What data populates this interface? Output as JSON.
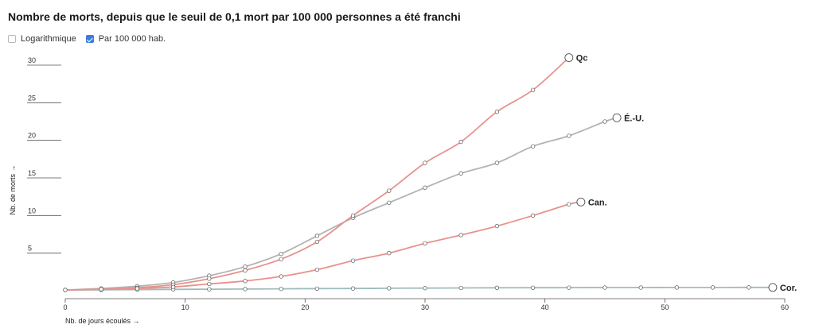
{
  "title": "Nombre de morts, depuis que le seuil de 0,1 mort par 100 000 personnes a été franchi",
  "controls": [
    {
      "label": "Logarithmique",
      "checked": false
    },
    {
      "label": "Par 100 000 hab.",
      "checked": true
    }
  ],
  "chart_data": {
    "type": "line",
    "xlabel": "Nb. de jours écoulés →",
    "ylabel": "Nb. de morts →",
    "xlim": [
      0,
      60
    ],
    "ylim": [
      0,
      30
    ],
    "x_ticks": [
      0,
      10,
      20,
      30,
      40,
      50,
      60
    ],
    "y_ticks": [
      5,
      10,
      15,
      20,
      25,
      30
    ],
    "log_scale": false,
    "grid": false,
    "series": [
      {
        "name": "Qc",
        "color": "#e8928c",
        "x": [
          0,
          3,
          6,
          9,
          12,
          15,
          18,
          21,
          24,
          27,
          30,
          33,
          36,
          39,
          42
        ],
        "y": [
          0.1,
          0.2,
          0.4,
          0.8,
          1.6,
          2.7,
          4.2,
          6.5,
          10.0,
          13.3,
          17.0,
          19.8,
          23.8,
          26.7,
          31.0
        ]
      },
      {
        "name": "É.-U.",
        "color": "#b3b3b3",
        "x": [
          0,
          3,
          6,
          9,
          12,
          15,
          18,
          21,
          24,
          27,
          30,
          33,
          36,
          39,
          42,
          45,
          46
        ],
        "y": [
          0.1,
          0.3,
          0.6,
          1.1,
          2.0,
          3.2,
          4.9,
          7.3,
          9.7,
          11.7,
          13.7,
          15.6,
          17.0,
          19.2,
          20.6,
          22.5,
          23.0
        ]
      },
      {
        "name": "Can.",
        "color": "#e8928c",
        "x": [
          0,
          3,
          6,
          9,
          12,
          15,
          18,
          21,
          24,
          27,
          30,
          33,
          36,
          39,
          42,
          43
        ],
        "y": [
          0.1,
          0.2,
          0.3,
          0.5,
          0.9,
          1.3,
          1.9,
          2.8,
          4.0,
          5.0,
          6.3,
          7.4,
          8.6,
          10.0,
          11.5,
          11.8
        ]
      },
      {
        "name": "Cor.",
        "color": "#9fbcbc",
        "x": [
          0,
          3,
          6,
          9,
          12,
          15,
          18,
          21,
          24,
          27,
          30,
          33,
          36,
          39,
          42,
          45,
          48,
          51,
          54,
          57,
          59
        ],
        "y": [
          0.1,
          0.12,
          0.15,
          0.18,
          0.2,
          0.22,
          0.25,
          0.28,
          0.3,
          0.33,
          0.35,
          0.37,
          0.39,
          0.4,
          0.41,
          0.42,
          0.42,
          0.43,
          0.43,
          0.44,
          0.44
        ]
      }
    ]
  }
}
